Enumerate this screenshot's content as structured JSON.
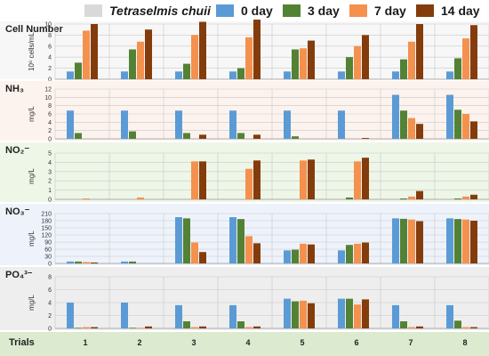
{
  "legend": {
    "species": {
      "label": "Tetraselmis chuii",
      "color": "#d9d9d9"
    },
    "items": [
      {
        "label": "0 day",
        "color": "#5b9bd5"
      },
      {
        "label": "3 day",
        "color": "#548235"
      },
      {
        "label": "7 day",
        "color": "#f4914e"
      },
      {
        "label": "14 day",
        "color": "#843c0c"
      }
    ]
  },
  "footer": {
    "label": "Trials",
    "trials": [
      "1",
      "2",
      "3",
      "4",
      "5",
      "6",
      "7",
      "8"
    ]
  },
  "chart_data": [
    {
      "type": "bar",
      "title": "Cell Number",
      "ylabel": "10⁶ cells/mL",
      "ylim": [
        0,
        10
      ],
      "yticks": [
        "0",
        "2",
        "4",
        "6",
        "8",
        "10"
      ],
      "ytick_values": [
        0,
        2,
        4,
        6,
        8,
        10
      ],
      "background": "#f7f7f7",
      "categories": [
        "1",
        "2",
        "3",
        "4",
        "5",
        "6",
        "7",
        "8"
      ],
      "series": [
        {
          "name": "0 day",
          "values": [
            1.4,
            1.4,
            1.4,
            1.4,
            1.4,
            1.4,
            1.4,
            1.4
          ]
        },
        {
          "name": "3 day",
          "values": [
            3.0,
            5.4,
            2.8,
            2.0,
            5.4,
            4.0,
            3.6,
            3.8
          ]
        },
        {
          "name": "7 day",
          "values": [
            8.8,
            6.8,
            8.0,
            7.6,
            5.6,
            6.0,
            6.8,
            7.4
          ]
        },
        {
          "name": "14 day",
          "values": [
            10.0,
            9.0,
            10.4,
            10.8,
            7.0,
            8.0,
            10.0,
            9.8
          ]
        }
      ]
    },
    {
      "type": "bar",
      "title": "NH₃",
      "ylabel": "mg/L",
      "ylim": [
        0,
        12
      ],
      "yticks": [
        "0",
        "2",
        "4",
        "6",
        "8",
        "10",
        "12"
      ],
      "ytick_values": [
        0,
        2,
        4,
        6,
        8,
        10,
        12
      ],
      "background": "#fdf3ee",
      "categories": [
        "1",
        "2",
        "3",
        "4",
        "5",
        "6",
        "7",
        "8"
      ],
      "series": [
        {
          "name": "0 day",
          "values": [
            6.8,
            6.8,
            6.8,
            6.8,
            6.8,
            6.8,
            10.6,
            10.6
          ]
        },
        {
          "name": "3 day",
          "values": [
            1.4,
            1.8,
            1.4,
            1.4,
            0.6,
            0,
            6.8,
            7.0
          ]
        },
        {
          "name": "7 day",
          "values": [
            0,
            0,
            0,
            0,
            0,
            0,
            5.0,
            6.0
          ]
        },
        {
          "name": "14 day",
          "values": [
            0,
            0,
            1.0,
            1.0,
            0,
            0.2,
            3.6,
            4.2
          ]
        }
      ]
    },
    {
      "type": "bar",
      "title": "NO₂⁻",
      "ylabel": "mg/L",
      "ylim": [
        0,
        5
      ],
      "yticks": [
        "0",
        "1",
        "2",
        "3",
        "4",
        "5"
      ],
      "ytick_values": [
        0,
        1,
        2,
        3,
        4,
        5
      ],
      "background": "#eef6e8",
      "categories": [
        "1",
        "2",
        "3",
        "4",
        "5",
        "6",
        "7",
        "8"
      ],
      "series": [
        {
          "name": "0 day",
          "values": [
            0,
            0,
            0,
            0,
            0,
            0,
            0,
            0
          ]
        },
        {
          "name": "3 day",
          "values": [
            0,
            0,
            0,
            0,
            0,
            0.2,
            0.1,
            0.1
          ]
        },
        {
          "name": "7 day",
          "values": [
            0.1,
            0.2,
            4.1,
            3.3,
            4.2,
            4.1,
            0.3,
            0.3
          ]
        },
        {
          "name": "14 day",
          "values": [
            0,
            0,
            4.1,
            4.2,
            4.3,
            4.5,
            0.9,
            0.5
          ]
        }
      ]
    },
    {
      "type": "bar",
      "title": "NO₃⁻",
      "ylabel": "mg/L",
      "ylim": [
        0,
        210
      ],
      "yticks": [
        "0",
        "30",
        "60",
        "90",
        "120",
        "150",
        "180",
        "210"
      ],
      "ytick_values": [
        0,
        30,
        60,
        90,
        120,
        150,
        180,
        210
      ],
      "background": "#eef3fb",
      "categories": [
        "1",
        "2",
        "3",
        "4",
        "5",
        "6",
        "7",
        "8"
      ],
      "series": [
        {
          "name": "0 day",
          "values": [
            8,
            8,
            195,
            195,
            55,
            55,
            190,
            190
          ]
        },
        {
          "name": "3 day",
          "values": [
            8,
            8,
            190,
            187,
            58,
            78,
            188,
            187
          ]
        },
        {
          "name": "7 day",
          "values": [
            6,
            0,
            88,
            115,
            83,
            83,
            185,
            185
          ]
        },
        {
          "name": "14 day",
          "values": [
            4,
            0,
            48,
            85,
            80,
            88,
            178,
            180
          ]
        }
      ]
    },
    {
      "type": "bar",
      "title": "PO₄³⁻",
      "ylabel": "mg/L",
      "ylim": [
        0,
        8
      ],
      "yticks": [
        "0",
        "2",
        "4",
        "6",
        "8"
      ],
      "ytick_values": [
        0,
        2,
        4,
        6,
        8
      ],
      "background": "#eeeeee",
      "categories": [
        "1",
        "2",
        "3",
        "4",
        "5",
        "6",
        "7",
        "8"
      ],
      "series": [
        {
          "name": "0 day",
          "values": [
            4.0,
            4.0,
            3.6,
            3.6,
            4.6,
            4.6,
            3.6,
            3.6
          ]
        },
        {
          "name": "3 day",
          "values": [
            0.1,
            0.1,
            1.1,
            1.1,
            4.2,
            4.6,
            1.1,
            1.2
          ]
        },
        {
          "name": "7 day",
          "values": [
            0.2,
            0.1,
            0.2,
            0.2,
            4.3,
            3.7,
            0.2,
            0.2
          ]
        },
        {
          "name": "14 day",
          "values": [
            0.2,
            0.3,
            0.3,
            0.3,
            3.9,
            4.5,
            0.3,
            0.2
          ]
        }
      ]
    }
  ]
}
